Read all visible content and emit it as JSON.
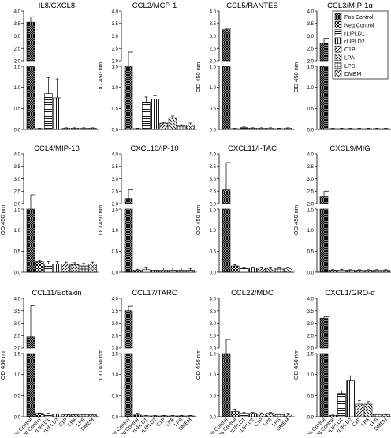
{
  "figure": {
    "ylabel": "OD 450 nm",
    "categories": [
      "Pos Control",
      "Neg Control",
      "rLIPLD1",
      "rLIPLD2",
      "C1P",
      "LPA",
      "LPS",
      "DMEM"
    ],
    "legend": [
      "Pos Control",
      "Neg Control",
      "rLIPLD1",
      "rLIPLD2",
      "C1P",
      "LPA",
      "LPS",
      "DMEM"
    ]
  },
  "chart_data": [
    {
      "type": "bar",
      "title": "IL8/CXCL8",
      "ylabel": "OD 450 nm",
      "categories": [
        "Pos Control",
        "Neg Control",
        "rLIPLD1",
        "rLIPLD2",
        "C1P",
        "LPA",
        "LPS",
        "DMEM"
      ],
      "values": [
        3.55,
        0.02,
        0.85,
        0.75,
        0.03,
        0.03,
        0.03,
        0.03
      ],
      "errors": [
        0.22,
        0.01,
        0.38,
        0.45,
        0.01,
        0.01,
        0.01,
        0.01
      ],
      "lower_ylim": [
        0,
        1.5
      ],
      "upper_ylim": [
        2.0,
        4.0
      ],
      "lower_ticks": [
        0.0,
        0.5,
        1.0,
        1.5
      ],
      "upper_ticks": [
        2.0,
        2.5,
        3.0,
        3.5,
        4.0
      ],
      "lower_tick_labels": [
        "0.0",
        "0.5",
        "1.0",
        "1.5"
      ],
      "upper_tick_labels": [
        "2.0",
        "2.5",
        "3.0",
        "3.5",
        "4.0"
      ],
      "show_ylabel": false,
      "show_xticklabels": false,
      "show_legend": false
    },
    {
      "type": "bar",
      "title": "CCL2/MCP-1",
      "ylabel": "OD 450 nm",
      "categories": [
        "Pos Control",
        "Neg Control",
        "rLIPLD1",
        "rLIPLD2",
        "C1P",
        "LPA",
        "LPS",
        "DMEM"
      ],
      "values": [
        1.9,
        0.02,
        0.65,
        0.72,
        0.15,
        0.28,
        0.08,
        0.1
      ],
      "errors": [
        0.3,
        0.01,
        0.12,
        0.08,
        0.02,
        0.04,
        0.03,
        0.05
      ],
      "lower_ylim": [
        0,
        1.5
      ],
      "upper_ylim": [
        2.0,
        4.0
      ],
      "lower_ticks": [
        0.0,
        0.5,
        1.0,
        1.5
      ],
      "upper_ticks": [
        2.0,
        2.5,
        3.0,
        3.5,
        4.0
      ],
      "lower_tick_labels": [
        "0.0",
        "0.5",
        "1.0",
        "1.5"
      ],
      "upper_tick_labels": [
        "2.0",
        "2.5",
        "3.0",
        "3.5",
        "4.0"
      ],
      "show_ylabel": true,
      "show_xticklabels": false,
      "show_legend": false
    },
    {
      "type": "bar",
      "title": "CCL5/RANTES",
      "ylabel": "OD 450 nm",
      "categories": [
        "Pos Control",
        "Neg Control",
        "rLIPLD1",
        "rLIPLD2",
        "C1P",
        "LPA",
        "LPS",
        "DMEM"
      ],
      "values": [
        3.25,
        0.02,
        0.05,
        0.03,
        0.03,
        0.03,
        0.02,
        0.03
      ],
      "errors": [
        0.05,
        0.01,
        0.01,
        0.01,
        0.01,
        0.01,
        0.01,
        0.01
      ],
      "lower_ylim": [
        0,
        1.5
      ],
      "upper_ylim": [
        2.0,
        4.0
      ],
      "lower_ticks": [
        0.0,
        0.5,
        1.0,
        1.5
      ],
      "upper_ticks": [
        2.0,
        2.5,
        3.0,
        3.5,
        4.0
      ],
      "lower_tick_labels": [
        "0.0",
        "0.5",
        "1.0",
        "1.5"
      ],
      "upper_tick_labels": [
        "2.0",
        "2.5",
        "3.0",
        "3.5",
        "4.0"
      ],
      "show_ylabel": true,
      "show_xticklabels": false,
      "show_legend": false
    },
    {
      "type": "bar",
      "title": "CCL3/MIP-1α",
      "ylabel": "OD 450 nm",
      "categories": [
        "Pos Control",
        "Neg Control",
        "rLIPLD1",
        "rLIPLD2",
        "C1P",
        "LPA",
        "LPS",
        "DMEM"
      ],
      "values": [
        2.7,
        0.02,
        0.02,
        0.02,
        0.02,
        0.02,
        0.02,
        0.02
      ],
      "errors": [
        0.2,
        0.01,
        0.01,
        0.01,
        0.01,
        0.01,
        0.01,
        0.01
      ],
      "lower_ylim": [
        0,
        1.5
      ],
      "upper_ylim": [
        2.0,
        4.0
      ],
      "lower_ticks": [
        0.0,
        0.5,
        1.0,
        1.5
      ],
      "upper_ticks": [
        2.0,
        2.5,
        3.0,
        3.5,
        4.0
      ],
      "lower_tick_labels": [
        "0.0",
        "0.5",
        "1.0",
        "1.5"
      ],
      "upper_tick_labels": [
        "2.0",
        "2.5",
        "3.0",
        "3.5",
        "4.0"
      ],
      "show_ylabel": true,
      "show_xticklabels": false,
      "show_legend": true
    },
    {
      "type": "bar",
      "title": "CCL4/MIP-1β",
      "ylabel": "OD 450 nm",
      "categories": [
        "Pos Control",
        "Neg Control",
        "rLIPLD1",
        "rLIPLD2",
        "C1P",
        "LPA",
        "LPS",
        "DMEM"
      ],
      "values": [
        1.9,
        0.25,
        0.2,
        0.2,
        0.2,
        0.18,
        0.15,
        0.2
      ],
      "errors": [
        0.35,
        0.03,
        0.05,
        0.05,
        0.04,
        0.05,
        0.06,
        0.04
      ],
      "lower_ylim": [
        0,
        1.5
      ],
      "upper_ylim": [
        2.0,
        4.0
      ],
      "lower_ticks": [
        0.0,
        0.5,
        1.0,
        1.5
      ],
      "upper_ticks": [
        2.0,
        2.5,
        3.0,
        3.5,
        4.0
      ],
      "lower_tick_labels": [
        "0.0",
        "0.5",
        "1.0",
        "1.5"
      ],
      "upper_tick_labels": [
        "2.0",
        "2.5",
        "3.0",
        "3.5",
        "4.0"
      ],
      "show_ylabel": true,
      "show_xticklabels": false,
      "show_legend": false
    },
    {
      "type": "bar",
      "title": "CXCL10/IP-10",
      "ylabel": "OD 450 nm",
      "categories": [
        "Pos Control",
        "Neg Control",
        "rLIPLD1",
        "rLIPLD2",
        "C1P",
        "LPA",
        "LPS",
        "DMEM"
      ],
      "values": [
        2.2,
        0.05,
        0.06,
        0.05,
        0.05,
        0.05,
        0.05,
        0.05
      ],
      "errors": [
        0.35,
        0.02,
        0.06,
        0.05,
        0.05,
        0.05,
        0.05,
        0.04
      ],
      "lower_ylim": [
        0,
        1.5
      ],
      "upper_ylim": [
        2.0,
        4.0
      ],
      "lower_ticks": [
        0.0,
        0.5,
        1.0,
        1.5
      ],
      "upper_ticks": [
        2.0,
        2.5,
        3.0,
        3.5,
        4.0
      ],
      "lower_tick_labels": [
        "0.0",
        "0.5",
        "1.0",
        "1.5"
      ],
      "upper_tick_labels": [
        "2.0",
        "2.5",
        "3.0",
        "3.5",
        "4.0"
      ],
      "show_ylabel": true,
      "show_xticklabels": false,
      "show_legend": false
    },
    {
      "type": "bar",
      "title": "CXCL11/I-TAC",
      "ylabel": "OD 450 nm",
      "categories": [
        "Pos Control",
        "Neg Control",
        "rLIPLD1",
        "rLIPLD2",
        "C1P",
        "LPA",
        "LPS",
        "DMEM"
      ],
      "values": [
        2.55,
        0.15,
        0.1,
        0.1,
        0.1,
        0.1,
        0.1,
        0.1
      ],
      "errors": [
        1.1,
        0.03,
        0.02,
        0.02,
        0.02,
        0.02,
        0.02,
        0.02
      ],
      "lower_ylim": [
        0,
        1.5
      ],
      "upper_ylim": [
        2.0,
        4.0
      ],
      "lower_ticks": [
        0.0,
        0.5,
        1.0,
        1.5
      ],
      "upper_ticks": [
        2.0,
        2.5,
        3.0,
        3.5,
        4.0
      ],
      "lower_tick_labels": [
        "0.0",
        "0.5",
        "1.0",
        "1.5"
      ],
      "upper_tick_labels": [
        "2.0",
        "2.5",
        "3.0",
        "3.5",
        "4.0"
      ],
      "show_ylabel": true,
      "show_xticklabels": false,
      "show_legend": false
    },
    {
      "type": "bar",
      "title": "CXCL9/MIG",
      "ylabel": "OD 450 nm",
      "categories": [
        "Pos Control",
        "Neg Control",
        "rLIPLD1",
        "rLIPLD2",
        "C1P",
        "LPA",
        "LPS",
        "DMEM"
      ],
      "values": [
        2.3,
        0.05,
        0.05,
        0.05,
        0.05,
        0.05,
        0.05,
        0.05
      ],
      "errors": [
        0.2,
        0.01,
        0.02,
        0.01,
        0.01,
        0.01,
        0.01,
        0.01
      ],
      "lower_ylim": [
        0,
        1.5
      ],
      "upper_ylim": [
        2.0,
        4.0
      ],
      "lower_ticks": [
        0.0,
        0.5,
        1.0,
        1.5
      ],
      "upper_ticks": [
        2.0,
        2.5,
        3.0,
        3.5,
        4.0
      ],
      "lower_tick_labels": [
        "0.0",
        "0.5",
        "1.0",
        "1.5"
      ],
      "upper_tick_labels": [
        "2.0",
        "2.5",
        "3.0",
        "3.5",
        "4.0"
      ],
      "show_ylabel": true,
      "show_xticklabels": false,
      "show_legend": false
    },
    {
      "type": "bar",
      "title": "CCL11/Eotaxin",
      "ylabel": "OD 450 nm",
      "categories": [
        "Pos Control",
        "Neg Control",
        "rLIPLD1",
        "rLIPLD2",
        "C1P",
        "LPA",
        "LPS",
        "DMEM"
      ],
      "values": [
        2.45,
        0.08,
        0.07,
        0.06,
        0.05,
        0.05,
        0.05,
        0.05
      ],
      "errors": [
        1.25,
        0.01,
        0.01,
        0.01,
        0.01,
        0.01,
        0.01,
        0.01
      ],
      "lower_ylim": [
        0,
        1.5
      ],
      "upper_ylim": [
        2.0,
        4.0
      ],
      "lower_ticks": [
        0.0,
        0.5,
        1.0,
        1.5
      ],
      "upper_ticks": [
        2.0,
        2.5,
        3.0,
        3.5,
        4.0
      ],
      "lower_tick_labels": [
        "0.0",
        "0.5",
        "1.0",
        "1.5"
      ],
      "upper_tick_labels": [
        "2.0",
        "2.5",
        "3.0",
        "3.5",
        "4.0"
      ],
      "show_ylabel": true,
      "show_xticklabels": true,
      "show_legend": false
    },
    {
      "type": "bar",
      "title": "CCL17/TARC",
      "ylabel": "OD 450 nm",
      "categories": [
        "Pos Control",
        "Neg Control",
        "rLIPLD1",
        "rLIPLD2",
        "C1P",
        "LPA",
        "LPS",
        "DMEM"
      ],
      "values": [
        3.5,
        0.04,
        0.02,
        0.02,
        0.02,
        0.02,
        0.02,
        0.02
      ],
      "errors": [
        0.18,
        0.04,
        0.01,
        0.01,
        0.01,
        0.01,
        0.01,
        0.01
      ],
      "lower_ylim": [
        0,
        1.5
      ],
      "upper_ylim": [
        2.0,
        4.0
      ],
      "lower_ticks": [
        0.0,
        0.5,
        1.0,
        1.5
      ],
      "upper_ticks": [
        2.0,
        2.5,
        3.0,
        3.5,
        4.0
      ],
      "lower_tick_labels": [
        "0.0",
        "0.5",
        "1.0",
        "1.5"
      ],
      "upper_tick_labels": [
        "2.0",
        "2.5",
        "3.0",
        "3.5",
        "4.0"
      ],
      "show_ylabel": true,
      "show_xticklabels": true,
      "show_legend": false
    },
    {
      "type": "bar",
      "title": "CCL22/MDC",
      "ylabel": "OD 450 nm",
      "categories": [
        "Pos Control",
        "Neg Control",
        "rLIPLD1",
        "rLIPLD2",
        "C1P",
        "LPA",
        "LPS",
        "DMEM"
      ],
      "values": [
        1.9,
        0.12,
        0.08,
        0.08,
        0.07,
        0.08,
        0.05,
        0.06
      ],
      "errors": [
        0.1,
        0.06,
        0.02,
        0.02,
        0.02,
        0.02,
        0.02,
        0.02
      ],
      "lower_ylim": [
        0,
        1.5
      ],
      "upper_ylim": [
        2.0,
        4.0
      ],
      "lower_ticks": [
        0.0,
        0.5,
        1.0,
        1.5
      ],
      "upper_ticks": [
        2.0,
        2.5,
        3.0,
        3.5,
        4.0
      ],
      "lower_tick_labels": [
        "0.0",
        "0.5",
        "1.0",
        "1.5"
      ],
      "upper_tick_labels": [
        "2.0",
        "2.5",
        "3.0",
        "3.5",
        "4.0"
      ],
      "show_ylabel": true,
      "show_xticklabels": true,
      "show_legend": false
    },
    {
      "type": "bar",
      "title": "CXCL1/GRO-α",
      "ylabel": "OD 450 nm",
      "categories": [
        "Pos Control",
        "Neg Control",
        "rLIPLD1",
        "rLIPLD2",
        "C1P",
        "LPA",
        "LPS",
        "DMEM"
      ],
      "values": [
        3.2,
        0.03,
        0.55,
        0.85,
        0.3,
        0.3,
        0.05,
        0.05
      ],
      "errors": [
        0.05,
        0.01,
        0.06,
        0.12,
        0.08,
        0.06,
        0.02,
        0.02
      ],
      "lower_ylim": [
        0,
        1.5
      ],
      "upper_ylim": [
        2.0,
        4.0
      ],
      "lower_ticks": [
        0.0,
        0.5,
        1.0,
        1.5
      ],
      "upper_ticks": [
        2.0,
        2.5,
        3.0,
        3.5,
        4.0
      ],
      "lower_tick_labels": [
        "0.0",
        "0.5",
        "1.0",
        "1.5"
      ],
      "upper_tick_labels": [
        "2.0",
        "2.5",
        "3.0",
        "3.5",
        "4.0"
      ],
      "show_ylabel": true,
      "show_xticklabels": true,
      "show_legend": false
    }
  ]
}
